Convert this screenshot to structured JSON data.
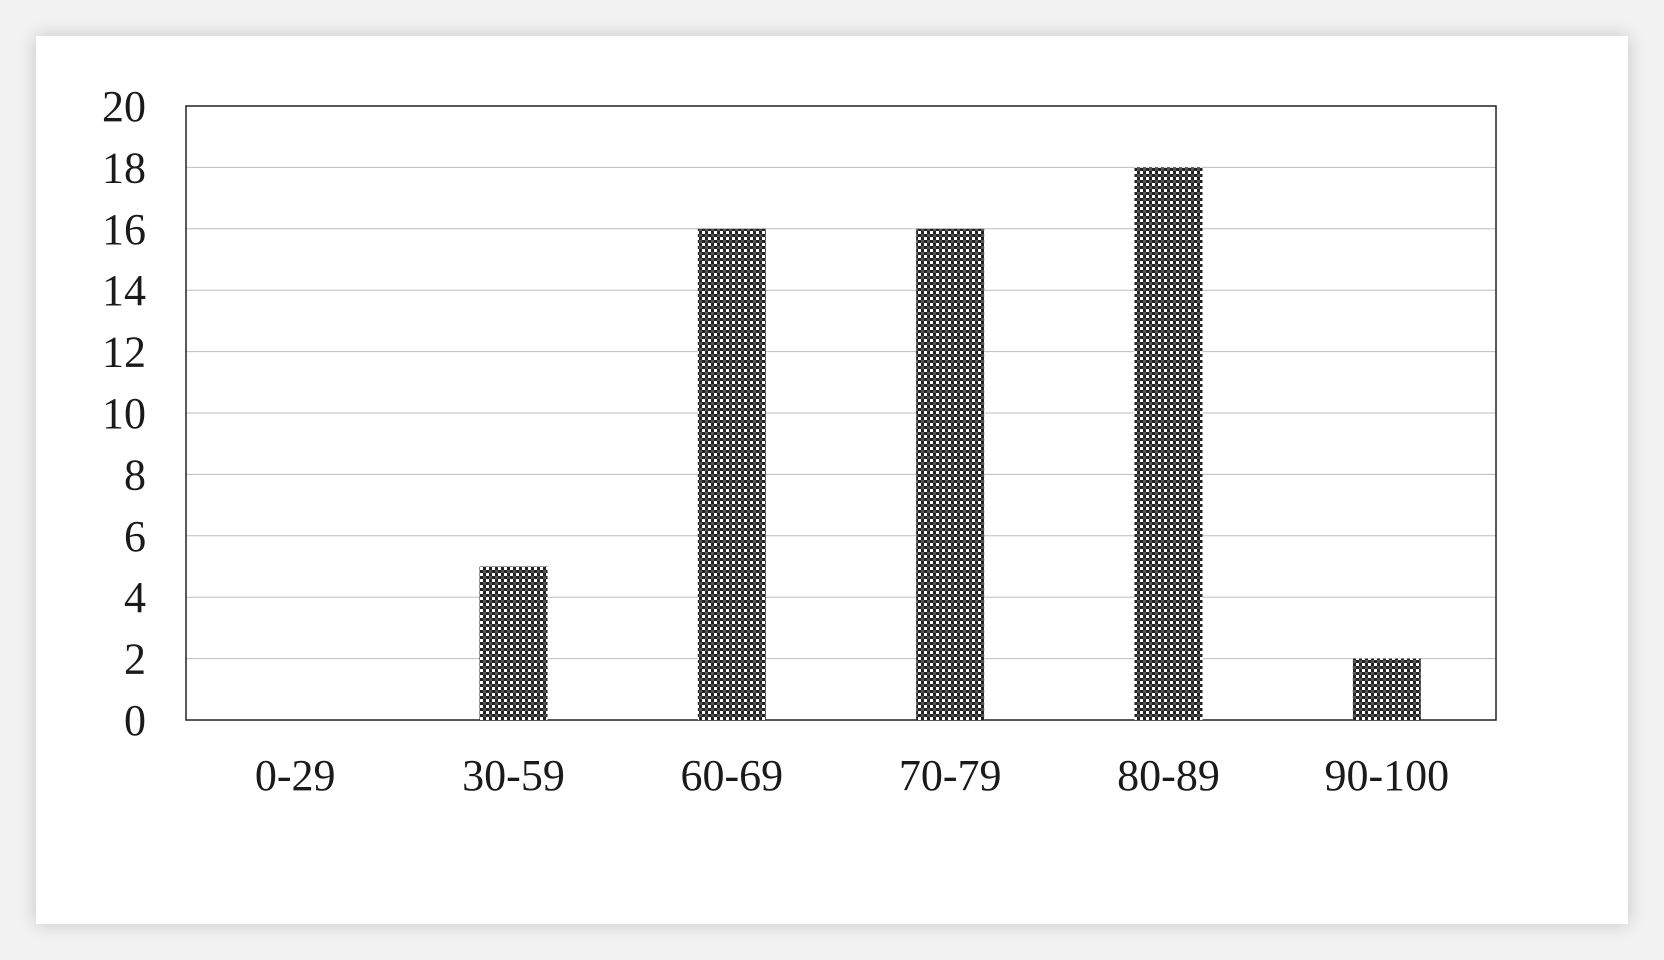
{
  "chart_data": {
    "type": "bar",
    "title": "",
    "xlabel": "",
    "ylabel": "",
    "categories": [
      "0-29",
      "30-59",
      "60-69",
      "70-79",
      "80-89",
      "90-100"
    ],
    "values": [
      0,
      5,
      16,
      16,
      18,
      2
    ],
    "ylim": [
      0,
      20
    ],
    "yticks": [
      "0",
      "2",
      "4",
      "6",
      "8",
      "10",
      "12",
      "14",
      "16",
      "18",
      "20"
    ],
    "grid": true,
    "legend": "none",
    "bar_color": "#3a3a3a"
  }
}
